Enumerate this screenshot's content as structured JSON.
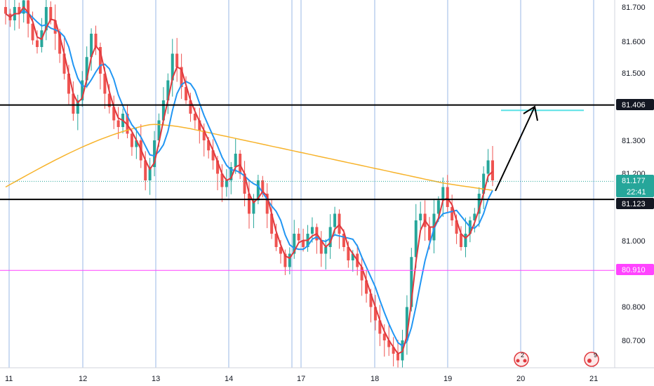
{
  "chart_data": {
    "type": "candlestick",
    "title": "",
    "ylim": [
      80.62,
      81.73
    ],
    "x_ticks": [
      "11",
      "12",
      "13",
      "14",
      "17",
      "18",
      "19",
      "20",
      "21"
    ],
    "y_ticks": [
      "81.700",
      "81.600",
      "81.500",
      "81.300",
      "81.200",
      "81.000",
      "80.800",
      "80.700"
    ],
    "grid": true,
    "candles_close": [
      81.68,
      81.66,
      81.7,
      81.68,
      81.72,
      81.65,
      81.6,
      81.58,
      81.63,
      81.7,
      81.66,
      81.62,
      81.56,
      81.5,
      81.44,
      81.38,
      81.42,
      81.48,
      81.55,
      81.62,
      81.58,
      81.5,
      81.44,
      81.4,
      81.36,
      81.34,
      81.38,
      81.32,
      81.28,
      81.3,
      81.24,
      81.18,
      81.22,
      81.3,
      81.36,
      81.42,
      81.48,
      81.56,
      81.52,
      81.46,
      81.42,
      81.38,
      81.36,
      81.33,
      81.3,
      81.27,
      81.24,
      81.2,
      81.16,
      81.18,
      81.22,
      81.26,
      81.2,
      81.14,
      81.08,
      81.12,
      81.18,
      81.14,
      81.08,
      81.02,
      80.98,
      80.96,
      80.92,
      80.96,
      81.02,
      81.0,
      80.98,
      81.02,
      81.04,
      81.0,
      80.96,
      80.98,
      81.04,
      81.08,
      81.02,
      80.98,
      80.94,
      80.96,
      80.92,
      80.88,
      80.84,
      80.8,
      80.76,
      80.72,
      80.7,
      80.68,
      80.66,
      80.64,
      80.7,
      80.8,
      80.95,
      81.06,
      81.08,
      81.04,
      81.0,
      81.08,
      81.12,
      81.16,
      81.1,
      81.06,
      81.02,
      80.98,
      81.02,
      81.06,
      81.08,
      81.14,
      81.2,
      81.24,
      81.18
    ],
    "series": [
      {
        "name": "",
        "color": "#e0393e"
      },
      {
        "name": "",
        "color": "#2196f3"
      },
      {
        "name": "",
        "color": "#f7b32b"
      }
    ],
    "horizontal_levels": [
      {
        "label": "81.406",
        "value": 81.406,
        "line_color": "#000000",
        "tag_bg": "#131722",
        "tag_fg": "#ffffff"
      },
      {
        "label": "81.123",
        "value": 81.123,
        "line_color": "#000000",
        "tag_bg": "#131722",
        "tag_fg": "#ffffff"
      },
      {
        "label": "80.910",
        "value": 80.91,
        "line_color": "#ff44ff",
        "tag_bg": "#ff44ff",
        "tag_fg": "#ffffff"
      }
    ],
    "current_price": {
      "label": "81.177",
      "timer": "22:41",
      "value": 81.177,
      "color": "#26a69a"
    },
    "target_line": {
      "value": 81.39,
      "color": "#5ce1e6"
    },
    "annotations": [
      {
        "label": "2",
        "color": "#e0393e"
      },
      {
        "label": "9",
        "color": "#e0393e"
      }
    ],
    "colors": {
      "up": "#26a69a",
      "down": "#ef5350",
      "grid_vertical": "#9ab7e6",
      "axis_bg": "#ffffff"
    }
  }
}
